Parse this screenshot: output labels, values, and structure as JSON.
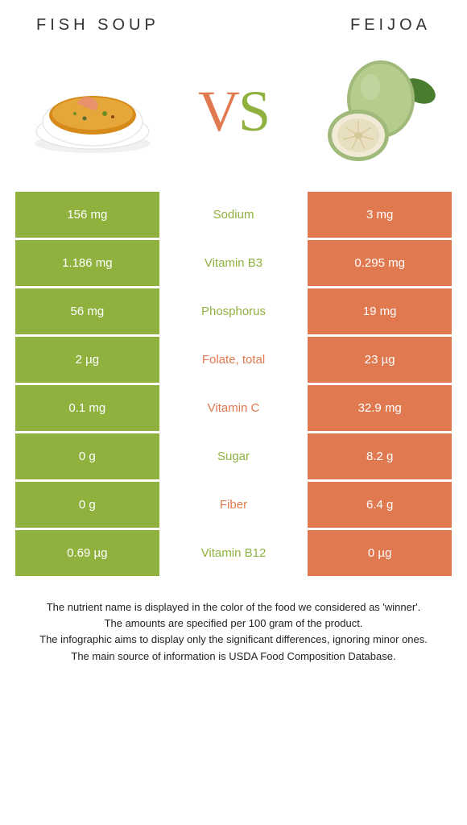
{
  "header": {
    "left_title": "Fish soup",
    "right_title": "Feijoa"
  },
  "vs": {
    "text": "VS",
    "left_color": "#e07850",
    "right_color": "#8fb23f"
  },
  "colors": {
    "left_cell": "#8fb23f",
    "right_cell": "#e07850",
    "green_text": "#8fb23f",
    "orange_text": "#e07850"
  },
  "rows": [
    {
      "left": "156 mg",
      "label": "Sodium",
      "right": "3 mg",
      "winner": "left"
    },
    {
      "left": "1.186 mg",
      "label": "Vitamin B3",
      "right": "0.295 mg",
      "winner": "left"
    },
    {
      "left": "56 mg",
      "label": "Phosphorus",
      "right": "19 mg",
      "winner": "left"
    },
    {
      "left": "2 µg",
      "label": "Folate, total",
      "right": "23 µg",
      "winner": "right"
    },
    {
      "left": "0.1 mg",
      "label": "Vitamin C",
      "right": "32.9 mg",
      "winner": "right"
    },
    {
      "left": "0 g",
      "label": "Sugar",
      "right": "8.2 g",
      "winner": "left"
    },
    {
      "left": "0 g",
      "label": "Fiber",
      "right": "6.4 g",
      "winner": "right"
    },
    {
      "left": "0.69 µg",
      "label": "Vitamin B12",
      "right": "0 µg",
      "winner": "left"
    }
  ],
  "footnote": {
    "l1": "The nutrient name is displayed in the color of the food we considered as 'winner'.",
    "l2": "The amounts are specified per 100 gram of the product.",
    "l3": "The infographic aims to display only the significant differences, ignoring minor ones.",
    "l4": "The main source of information is USDA Food Composition Database."
  }
}
